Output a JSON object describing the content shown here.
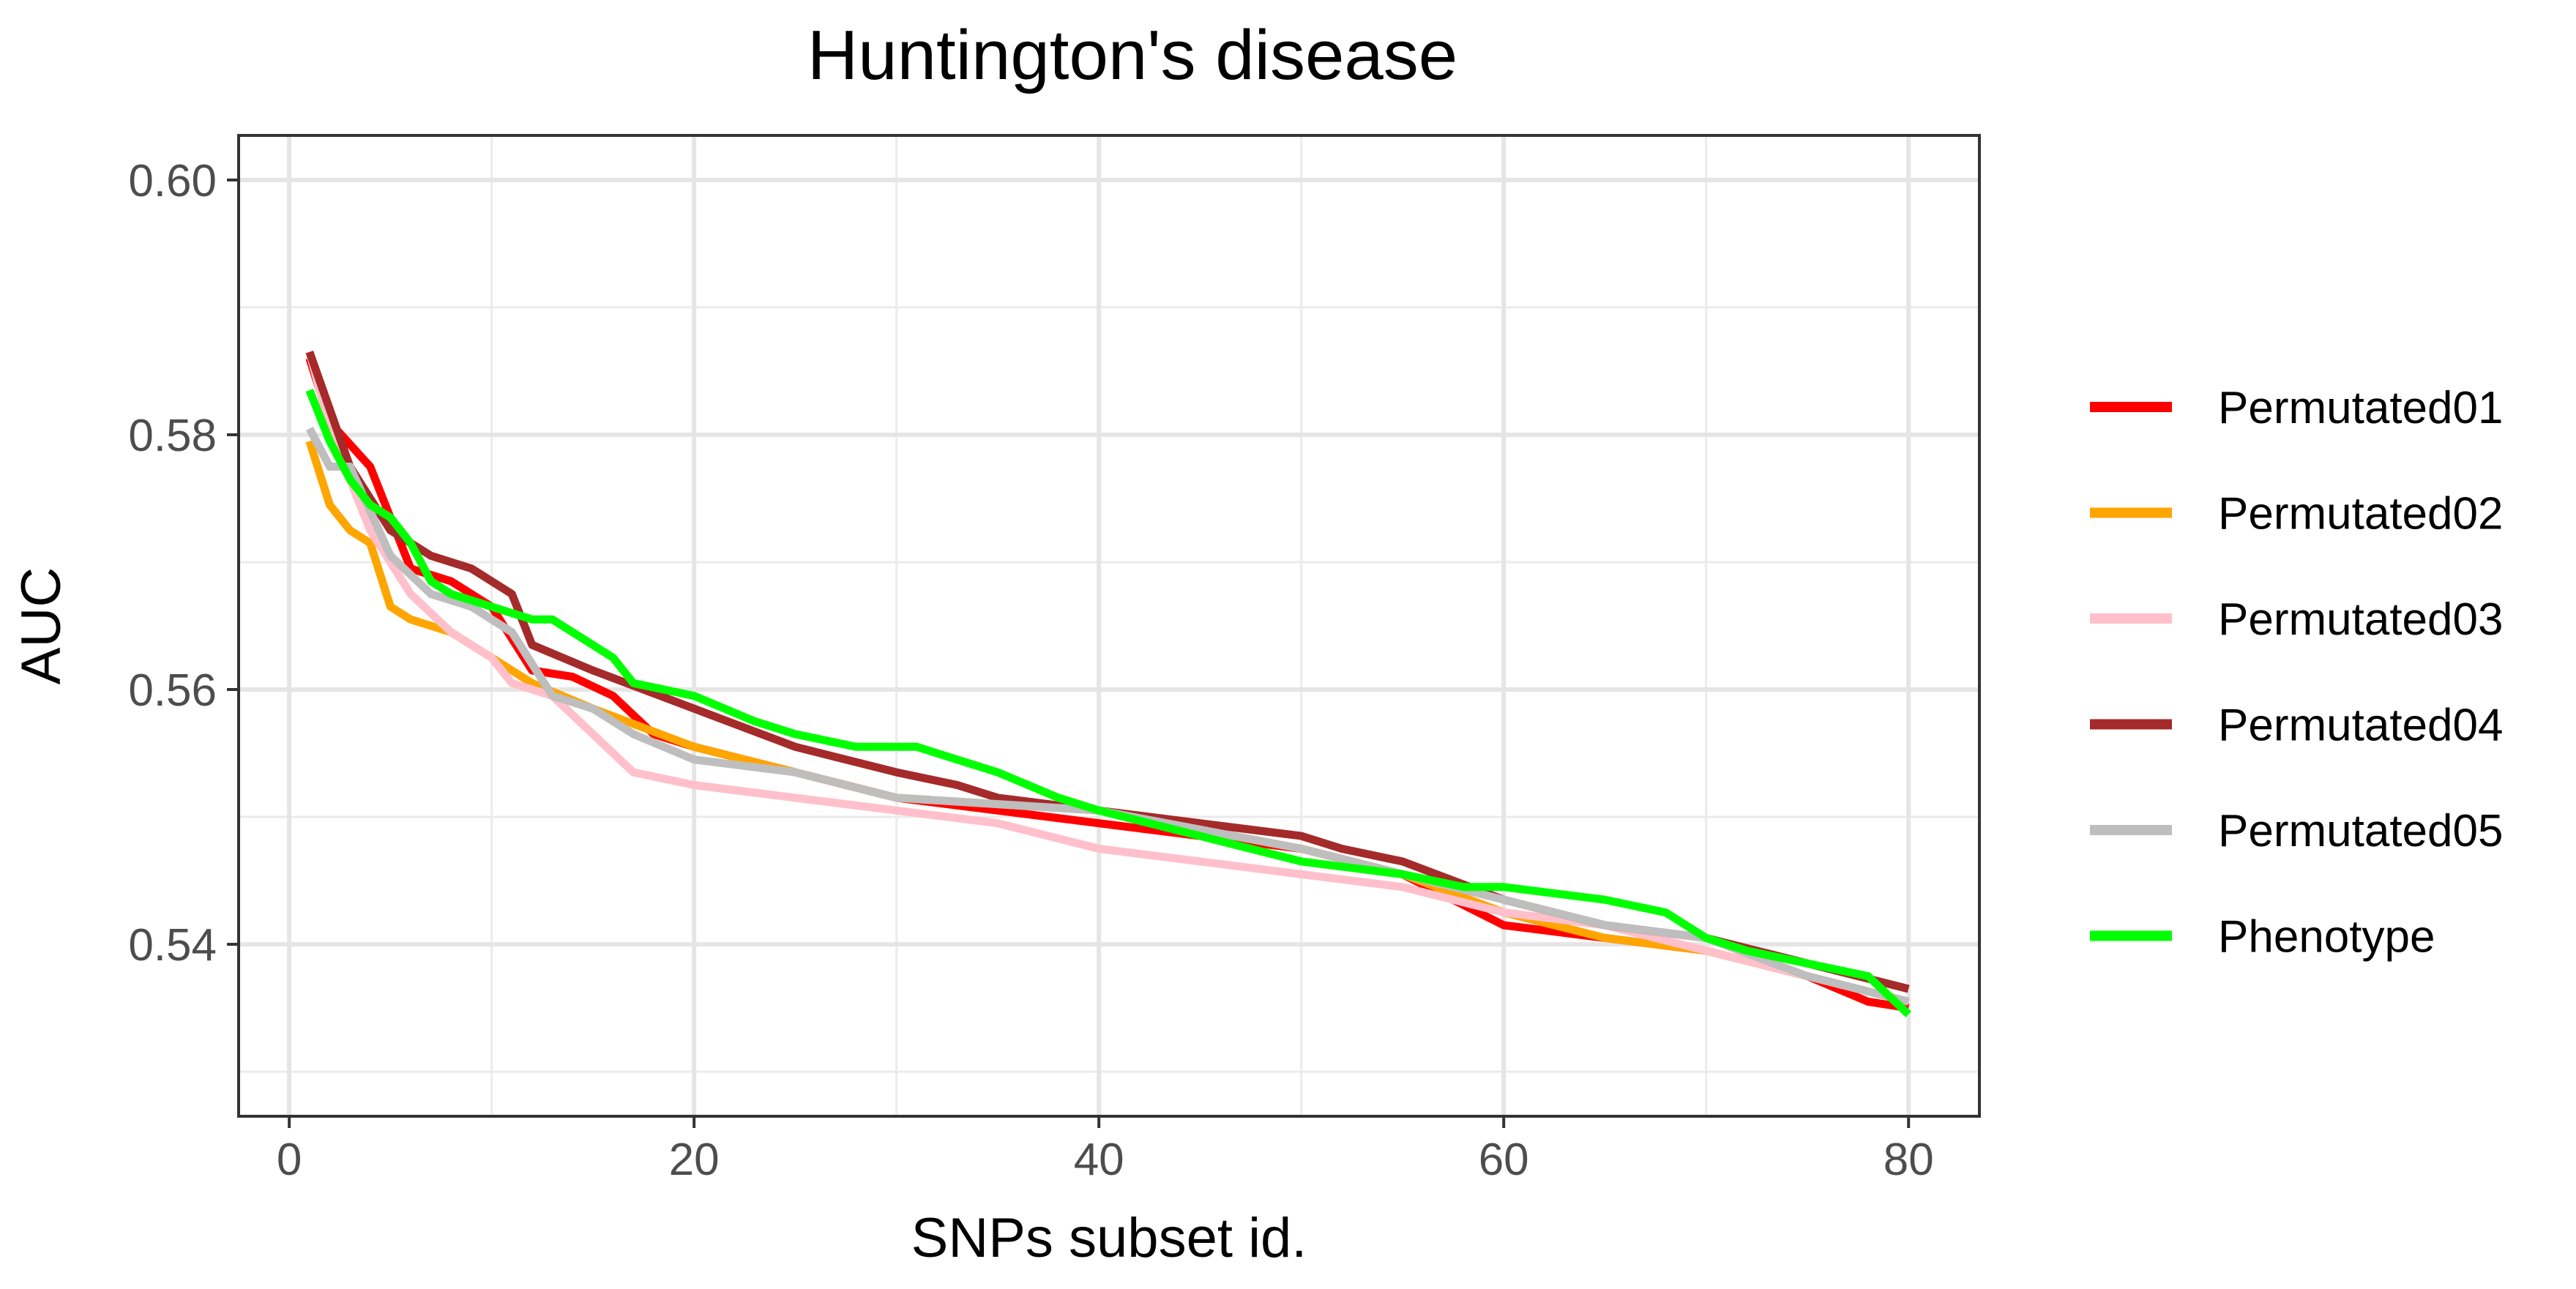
{
  "chart_data": {
    "type": "line",
    "title": "Huntington's disease",
    "xlabel": "SNPs subset id.",
    "ylabel": "AUC",
    "xlim": [
      -2.5,
      83.5
    ],
    "ylim": [
      0.5265,
      0.6035
    ],
    "x_ticks": [
      0,
      20,
      40,
      60,
      80
    ],
    "y_ticks": [
      0.54,
      0.56,
      0.58,
      0.6
    ],
    "x_tick_labels": [
      "0",
      "20",
      "40",
      "60",
      "80"
    ],
    "y_tick_labels": [
      "0.54",
      "0.56",
      "0.58",
      "0.60"
    ],
    "grid": true,
    "legend_position": "right",
    "series": [
      {
        "name": "Permutated01",
        "color": "#ff0000",
        "x": [
          1,
          2,
          4,
          6,
          8,
          10,
          12,
          14,
          16,
          18,
          20,
          25,
          30,
          40,
          50,
          55,
          60,
          65,
          70,
          75,
          78,
          80
        ],
        "values": [
          0.586,
          0.581,
          0.5775,
          0.5695,
          0.5685,
          0.5665,
          0.5615,
          0.561,
          0.5595,
          0.5565,
          0.5555,
          0.5535,
          0.5515,
          0.5495,
          0.5475,
          0.5455,
          0.5415,
          0.5405,
          0.5395,
          0.5375,
          0.5355,
          0.535
        ]
      },
      {
        "name": "Permutated02",
        "color": "#ffa500",
        "x": [
          1,
          2,
          3,
          4,
          5,
          6,
          8,
          10,
          12,
          15,
          20,
          25,
          30,
          40,
          50,
          55,
          60,
          65,
          70,
          75,
          80
        ],
        "values": [
          0.5795,
          0.5745,
          0.5725,
          0.5715,
          0.5665,
          0.5655,
          0.5645,
          0.5625,
          0.5605,
          0.5585,
          0.5555,
          0.5535,
          0.5515,
          0.5505,
          0.5475,
          0.5455,
          0.5425,
          0.5405,
          0.5395,
          0.5375,
          0.5355
        ]
      },
      {
        "name": "Permutated03",
        "color": "#ffc0cb",
        "x": [
          1,
          2,
          4,
          6,
          8,
          10,
          11,
          13,
          15,
          17,
          20,
          25,
          30,
          35,
          40,
          45,
          50,
          55,
          60,
          65,
          70,
          75,
          80
        ],
        "values": [
          0.5865,
          0.5805,
          0.5725,
          0.5675,
          0.5645,
          0.5625,
          0.5605,
          0.5595,
          0.5565,
          0.5535,
          0.5525,
          0.5515,
          0.5505,
          0.5495,
          0.5475,
          0.5465,
          0.5455,
          0.5445,
          0.5425,
          0.5415,
          0.5395,
          0.5375,
          0.5355
        ]
      },
      {
        "name": "Permutated04",
        "color": "#a52a2a",
        "x": [
          1,
          3,
          5,
          7,
          9,
          11,
          12,
          15,
          20,
          25,
          30,
          33,
          35,
          40,
          45,
          50,
          52,
          55,
          60,
          65,
          70,
          75,
          80
        ],
        "values": [
          0.5865,
          0.5775,
          0.5725,
          0.5705,
          0.5695,
          0.5675,
          0.5635,
          0.5615,
          0.5585,
          0.5555,
          0.5535,
          0.5525,
          0.5515,
          0.5505,
          0.5495,
          0.5485,
          0.5475,
          0.5465,
          0.5435,
          0.5415,
          0.5405,
          0.5385,
          0.5365
        ]
      },
      {
        "name": "Permutated05",
        "color": "#bebebe",
        "x": [
          1,
          2,
          3,
          5,
          7,
          9,
          11,
          13,
          15,
          17,
          20,
          25,
          30,
          40,
          50,
          55,
          60,
          65,
          70,
          75,
          80
        ],
        "values": [
          0.5805,
          0.5775,
          0.5775,
          0.5705,
          0.5675,
          0.5665,
          0.5645,
          0.5595,
          0.5585,
          0.5565,
          0.5545,
          0.5535,
          0.5515,
          0.5505,
          0.5475,
          0.5455,
          0.5435,
          0.5415,
          0.5405,
          0.5375,
          0.5355
        ]
      },
      {
        "name": "Phenotype",
        "color": "#00ff00",
        "x": [
          1,
          2,
          3,
          4,
          5,
          6,
          7,
          8,
          10,
          12,
          13,
          16,
          17,
          20,
          23,
          25,
          28,
          31,
          33,
          35,
          38,
          40,
          45,
          50,
          55,
          58,
          60,
          65,
          68,
          70,
          72,
          75,
          78,
          80
        ],
        "values": [
          0.5835,
          0.5795,
          0.5765,
          0.5745,
          0.5735,
          0.5715,
          0.5685,
          0.5675,
          0.5665,
          0.5655,
          0.5655,
          0.5625,
          0.5605,
          0.5595,
          0.5575,
          0.5565,
          0.5555,
          0.5555,
          0.5545,
          0.5535,
          0.5515,
          0.5505,
          0.5485,
          0.5465,
          0.5455,
          0.5445,
          0.5445,
          0.5435,
          0.5425,
          0.5405,
          0.5395,
          0.5385,
          0.5375,
          0.5345
        ]
      }
    ]
  }
}
